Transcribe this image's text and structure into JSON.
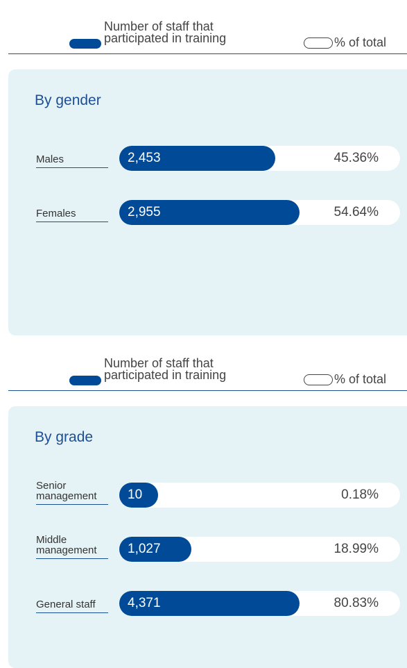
{
  "charts": [
    {
      "type": "bar",
      "title": "By gender",
      "categories": [
        "Males",
        "Females"
      ],
      "series": [
        {
          "name": "Number of staff that participated in training",
          "color": "#004a97",
          "values": [
            2453,
            2955
          ],
          "value_labels": [
            "2,453",
            "2,955"
          ]
        },
        {
          "name": "% of total",
          "color": "#ffffff",
          "values": [
            45.36,
            54.64
          ],
          "value_labels": [
            "45.36%",
            "54.64%"
          ]
        }
      ]
    },
    {
      "type": "bar",
      "title": "By grade",
      "categories": [
        "Senior management",
        "Middle management",
        "General staff"
      ],
      "series": [
        {
          "name": "Number of staff that participated in training",
          "color": "#004a97",
          "values": [
            10,
            1027,
            4371
          ],
          "value_labels": [
            "10",
            "1,027",
            "4,371"
          ]
        },
        {
          "name": "% of total",
          "color": "#ffffff",
          "values": [
            0.18,
            18.99,
            80.83
          ],
          "value_labels": [
            "0.18%",
            "18.99%",
            "80.83%"
          ]
        }
      ]
    }
  ]
}
